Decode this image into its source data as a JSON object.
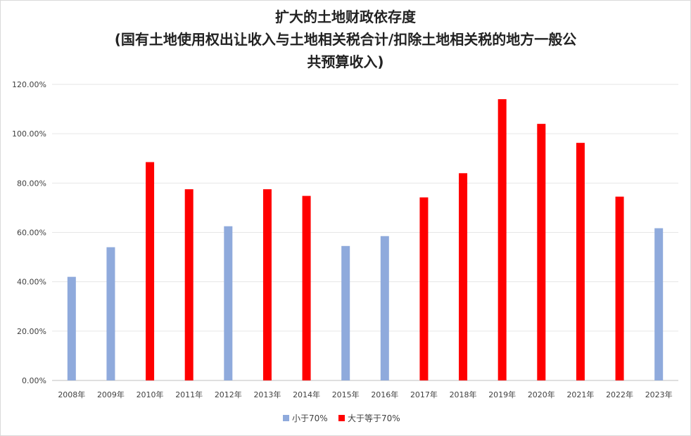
{
  "chart_data": {
    "type": "bar",
    "title_lines": [
      "扩大的土地财政依存度",
      "(国有土地使用权出让收入与土地相关税合计/扣除土地相关税的地方一般公",
      "共预算收入)"
    ],
    "xlabel": "",
    "ylabel": "",
    "categories": [
      "2008年",
      "2009年",
      "2010年",
      "2011年",
      "2012年",
      "2013年",
      "2014年",
      "2015年",
      "2016年",
      "2017年",
      "2018年",
      "2019年",
      "2020年",
      "2021年",
      "2022年",
      "2023年"
    ],
    "values": [
      0.42,
      0.54,
      0.885,
      0.775,
      0.625,
      0.775,
      0.748,
      0.545,
      0.585,
      0.742,
      0.84,
      1.14,
      1.04,
      0.963,
      0.745,
      0.617
    ],
    "groups": [
      "lt70",
      "lt70",
      "ge70",
      "ge70",
      "lt70",
      "ge70",
      "ge70",
      "lt70",
      "lt70",
      "ge70",
      "ge70",
      "ge70",
      "ge70",
      "ge70",
      "ge70",
      "lt70"
    ],
    "series": [
      {
        "key": "lt70",
        "name": "小于70%",
        "color": "#8faadc"
      },
      {
        "key": "ge70",
        "name": "大于等于70%",
        "color": "#ff0000"
      }
    ],
    "ylim": [
      0,
      1.2
    ],
    "yticks": [
      "0.00%",
      "20.00%",
      "40.00%",
      "60.00%",
      "80.00%",
      "100.00%",
      "120.00%"
    ],
    "grid": true,
    "legend_position": "bottom"
  }
}
